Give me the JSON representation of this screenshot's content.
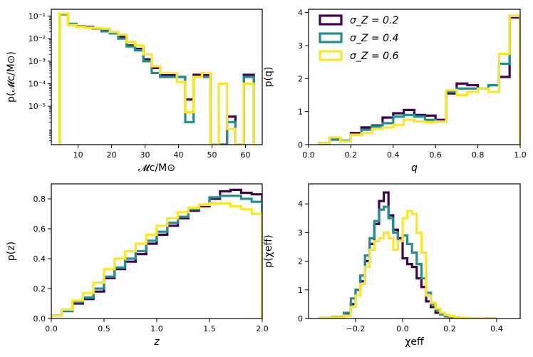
{
  "colors": {
    "s02": "#440154",
    "s04": "#21908d",
    "s06": "#fde725"
  },
  "legend": [
    {
      "key": "s02",
      "label": "σ_Z = 0.2"
    },
    {
      "key": "s04",
      "label": "σ_Z = 0.4"
    },
    {
      "key": "s06",
      "label": "σ_Z = 0.6"
    }
  ],
  "chart_data": [
    {
      "id": "mc",
      "type": "histogram",
      "xlabel": "𝓜c/M⊙",
      "ylabel": "p(𝓜c/M⊙)",
      "yscale": "log",
      "xlim": [
        2,
        65
      ],
      "ylim": [
        2e-07,
        0.2
      ],
      "xticks": [
        10,
        20,
        30,
        40,
        50,
        60
      ],
      "yticks": [
        0.1,
        0.01,
        0.001,
        0.0001,
        1e-05
      ],
      "ytick_labels": [
        "10⁻¹",
        "10⁻²",
        "10⁻³",
        "10⁻⁴",
        "10⁻⁵"
      ],
      "edges": [
        4.5,
        7,
        9.5,
        12,
        14.5,
        17,
        19.5,
        22,
        24.5,
        27,
        29.5,
        32,
        34.5,
        37,
        39.5,
        42,
        44.5,
        47,
        49.5,
        52,
        54.5,
        57,
        59.5,
        62.5
      ],
      "series": [
        {
          "key": "s02",
          "values": [
            0.12,
            0.045,
            0.035,
            0.033,
            0.029,
            0.022,
            0.018,
            0.012,
            0.005,
            0.0035,
            0.0012,
            0.0005,
            0.00025,
            0.00025,
            0.0002,
            2e-05,
            0.00025,
            0.00025,
            0,
            0,
            3.5e-06,
            0,
            0.00025
          ]
        },
        {
          "key": "s04",
          "values": [
            0.12,
            0.045,
            0.034,
            0.032,
            0.028,
            0.021,
            0.017,
            0.01,
            0.0045,
            0.003,
            0.001,
            0.0003,
            0.0002,
            0.0002,
            0.0002,
            2e-06,
            0.0002,
            0.0002,
            0,
            0,
            2e-06,
            0,
            0.0002
          ]
        },
        {
          "key": "s06",
          "values": [
            0.13,
            0.04,
            0.033,
            0.03,
            0.03,
            0.028,
            0.02,
            0.015,
            0.007,
            0.005,
            0.002,
            0.0006,
            0.0003,
            0.0003,
            0.00012,
            5.5e-06,
            0.0002,
            0.0003,
            0,
            0.0001,
            1e-06,
            0,
            0.0001
          ]
        }
      ]
    },
    {
      "id": "q",
      "type": "histogram",
      "xlabel": "q",
      "ylabel": "p(q)",
      "xlim": [
        0,
        1
      ],
      "ylim": [
        0,
        4.1
      ],
      "xticks": [
        0.0,
        0.2,
        0.4,
        0.6,
        0.8,
        1.0
      ],
      "xtick_labels": [
        "0.0",
        "0.2",
        "0.4",
        "0.6",
        "0.8",
        "1.0"
      ],
      "yticks": [
        0,
        1,
        2,
        3,
        4
      ],
      "edges": [
        0.05,
        0.1,
        0.15,
        0.2,
        0.25,
        0.3,
        0.35,
        0.4,
        0.45,
        0.5,
        0.55,
        0.6,
        0.65,
        0.7,
        0.75,
        0.8,
        0.85,
        0.9,
        0.95,
        1.0
      ],
      "series": [
        {
          "key": "s02",
          "values": [
            0.05,
            0.2,
            0.12,
            0.35,
            0.52,
            0.58,
            0.82,
            0.95,
            1.05,
            0.9,
            0.88,
            0.75,
            1.55,
            1.85,
            1.8,
            1.7,
            1.8,
            2.05,
            3.85
          ]
        },
        {
          "key": "s04",
          "values": [
            0.04,
            0.15,
            0.12,
            0.3,
            0.45,
            0.55,
            0.65,
            0.85,
            0.9,
            0.85,
            0.75,
            0.7,
            1.6,
            1.7,
            1.7,
            1.7,
            1.8,
            2.45,
            3.9
          ]
        },
        {
          "key": "s06",
          "values": [
            0.05,
            0.22,
            0.1,
            0.3,
            0.35,
            0.48,
            0.52,
            0.6,
            0.75,
            0.7,
            0.68,
            0.7,
            1.65,
            1.5,
            1.6,
            1.7,
            1.6,
            2.75,
            3.9
          ]
        }
      ]
    },
    {
      "id": "z",
      "type": "histogram",
      "xlabel": "z",
      "ylabel": "p(z)",
      "xlim": [
        0,
        2
      ],
      "ylim": [
        0,
        0.9
      ],
      "xticks": [
        0.0,
        0.5,
        1.0,
        1.5,
        2.0
      ],
      "xtick_labels": [
        "0.0",
        "0.5",
        "1.0",
        "1.5",
        "2.0"
      ],
      "yticks": [
        0.0,
        0.2,
        0.4,
        0.6,
        0.8
      ],
      "ytick_labels": [
        "0.0",
        "0.2",
        "0.4",
        "0.6",
        "0.8"
      ],
      "edges": [
        0.0,
        0.1,
        0.2,
        0.3,
        0.4,
        0.5,
        0.6,
        0.7,
        0.8,
        0.9,
        1.0,
        1.1,
        1.2,
        1.3,
        1.4,
        1.5,
        1.6,
        1.7,
        1.8,
        1.9,
        2.0
      ],
      "series": [
        {
          "key": "s02",
          "values": [
            0.02,
            0.05,
            0.1,
            0.13,
            0.18,
            0.27,
            0.33,
            0.38,
            0.43,
            0.5,
            0.56,
            0.62,
            0.67,
            0.72,
            0.75,
            0.8,
            0.85,
            0.86,
            0.84,
            0.83
          ]
        },
        {
          "key": "s04",
          "values": [
            0.02,
            0.05,
            0.11,
            0.14,
            0.2,
            0.28,
            0.34,
            0.4,
            0.45,
            0.52,
            0.58,
            0.64,
            0.68,
            0.73,
            0.76,
            0.81,
            0.82,
            0.82,
            0.8,
            0.78
          ]
        },
        {
          "key": "s06",
          "values": [
            0.02,
            0.06,
            0.12,
            0.17,
            0.24,
            0.33,
            0.4,
            0.45,
            0.5,
            0.56,
            0.62,
            0.67,
            0.71,
            0.74,
            0.76,
            0.77,
            0.77,
            0.75,
            0.73,
            0.7
          ]
        }
      ]
    },
    {
      "id": "chi",
      "type": "histogram",
      "xlabel": "χeff",
      "ylabel": "p(χeff)",
      "xlim": [
        -0.4,
        0.5
      ],
      "ylim": [
        0,
        4.7
      ],
      "xticks": [
        -0.2,
        0.0,
        0.2,
        0.4
      ],
      "xtick_labels": [
        "−0.2",
        "0.0",
        "0.2",
        "0.4"
      ],
      "yticks": [
        0,
        1,
        2,
        3,
        4
      ],
      "edges": [
        -0.35,
        -0.3,
        -0.25,
        -0.22,
        -0.2,
        -0.18,
        -0.16,
        -0.14,
        -0.12,
        -0.1,
        -0.08,
        -0.06,
        -0.04,
        -0.02,
        0.0,
        0.02,
        0.04,
        0.06,
        0.08,
        0.1,
        0.12,
        0.14,
        0.16,
        0.18,
        0.2,
        0.22,
        0.24,
        0.26,
        0.28,
        0.3,
        0.35,
        0.4
      ],
      "series": [
        {
          "key": "s02",
          "values": [
            0.02,
            0.05,
            0.15,
            0.5,
            1.0,
            1.3,
            2.0,
            2.6,
            3.3,
            4.1,
            4.4,
            3.6,
            3.1,
            2.8,
            2.1,
            1.9,
            1.8,
            1.4,
            1.1,
            0.6,
            0.4,
            0.2,
            0.15,
            0.08,
            0.04,
            0.02,
            0.01,
            0.01,
            0.005,
            0.005,
            0.0
          ]
        },
        {
          "key": "s04",
          "values": [
            0.02,
            0.06,
            0.2,
            0.7,
            1.0,
            1.5,
            2.2,
            2.8,
            3.4,
            3.8,
            3.9,
            3.5,
            3.0,
            2.7,
            2.9,
            2.6,
            2.3,
            1.9,
            1.4,
            0.9,
            0.5,
            0.3,
            0.15,
            0.1,
            0.05,
            0.03,
            0.02,
            0.01,
            0.01,
            0.005,
            0.0
          ]
        },
        {
          "key": "s06",
          "values": [
            0.02,
            0.04,
            0.1,
            0.4,
            0.8,
            1.2,
            1.8,
            2.4,
            2.7,
            2.8,
            3.0,
            2.8,
            2.4,
            2.7,
            3.5,
            3.75,
            3.65,
            3.0,
            2.3,
            0.8,
            0.55,
            0.35,
            0.2,
            0.12,
            0.08,
            0.05,
            0.03,
            0.02,
            0.02,
            0.01,
            0.0
          ]
        }
      ]
    }
  ]
}
